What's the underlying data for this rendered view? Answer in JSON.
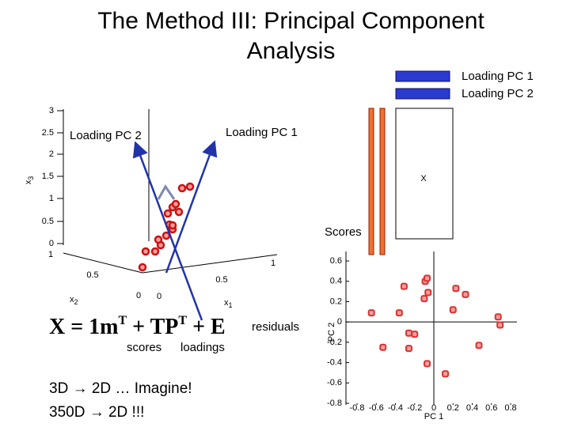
{
  "title": "The Method III: Principal Component Analysis",
  "legend": {
    "items": [
      "Loading PC 1",
      "Loading PC 2"
    ]
  },
  "plot3d": {
    "z_ticks": [
      "3",
      "2.5",
      "2",
      "1.5",
      "1",
      "0.5",
      "0"
    ],
    "z_label": "x",
    "z_label_sub": "3",
    "x2_ticks": [
      "1",
      "0.5",
      "0"
    ],
    "x2_label": "x",
    "x2_label_sub": "2",
    "x1_ticks": [
      "0",
      "0.5",
      "1"
    ],
    "x1_label": "x",
    "x1_label_sub": "1",
    "arrow_labels": [
      "Loading PC 2",
      "Loading PC 1"
    ]
  },
  "matrix": {
    "label": "X",
    "scores_label": "Scores"
  },
  "equation": {
    "parts": [
      "X = 1m",
      "T",
      " + TP",
      "T",
      " + E"
    ],
    "scores": "scores",
    "loadings": "loadings",
    "residuals": "residuals"
  },
  "notes": [
    "3D → 2D … Imagine!",
    "350D → 2D !!!"
  ],
  "chart_data": {
    "type": "scatter",
    "x_label": "PC 1",
    "y_label": "PC 2",
    "color": "#e03030",
    "x": [
      -0.31,
      -0.09,
      -0.07,
      -0.06,
      -0.1,
      0.23,
      0.33,
      0.2,
      -0.65,
      -0.36,
      -0.26,
      -0.2,
      -0.26,
      -0.53,
      0.67,
      0.69,
      0.47,
      -0.07,
      0.12
    ],
    "values": [
      0.35,
      0.4,
      0.43,
      0.29,
      0.23,
      0.33,
      0.27,
      0.12,
      0.09,
      0.09,
      -0.11,
      -0.12,
      -0.26,
      -0.25,
      0.05,
      -0.03,
      -0.23,
      -0.41,
      -0.51
    ],
    "xlim": [
      -0.8,
      0.8
    ],
    "ylim": [
      -0.8,
      0.6
    ],
    "xticks": [
      -0.8,
      -0.6,
      -0.4,
      -0.2,
      0,
      0.2,
      0.4,
      0.6,
      0.8
    ],
    "yticks": [
      -0.8,
      -0.6,
      -0.4,
      -0.2,
      0,
      0.2,
      0.4,
      0.6
    ]
  }
}
